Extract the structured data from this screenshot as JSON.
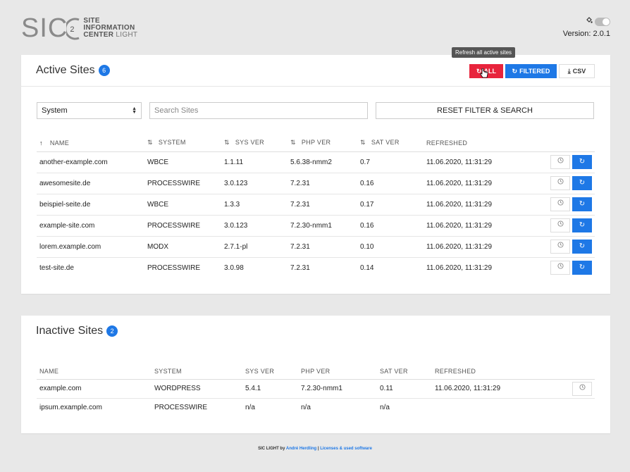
{
  "header": {
    "logo_sic": "SIC",
    "logo_sup": "2",
    "logo_line1": "SITE",
    "logo_line2": "INFORMATION",
    "logo_line3a": "CENTER",
    "logo_line3b": "LIGHT",
    "version": "Version: 2.0.1"
  },
  "tooltip": "Refresh all active sites",
  "active": {
    "title": "Active Sites",
    "count": "6",
    "buttons": {
      "all": "ALL",
      "filtered": "FILTERED",
      "csv": "CSV"
    },
    "select_value": "System",
    "search_placeholder": "Search Sites",
    "reset_label": "RESET FILTER & SEARCH",
    "columns": [
      "NAME",
      "SYSTEM",
      "SYS VER",
      "PHP VER",
      "SAT VER",
      "REFRESHED"
    ],
    "rows": [
      [
        "another-example.com",
        "WBCE",
        "1.1.11",
        "5.6.38-nmm2",
        "0.7",
        "11.06.2020, 11:31:29"
      ],
      [
        "awesomesite.de",
        "PROCESSWIRE",
        "3.0.123",
        "7.2.31",
        "0.16",
        "11.06.2020, 11:31:29"
      ],
      [
        "beispiel-seite.de",
        "WBCE",
        "1.3.3",
        "7.2.31",
        "0.17",
        "11.06.2020, 11:31:29"
      ],
      [
        "example-site.com",
        "PROCESSWIRE",
        "3.0.123",
        "7.2.30-nmm1",
        "0.16",
        "11.06.2020, 11:31:29"
      ],
      [
        "lorem.example.com",
        "MODX",
        "2.7.1-pl",
        "7.2.31",
        "0.10",
        "11.06.2020, 11:31:29"
      ],
      [
        "test-site.de",
        "PROCESSWIRE",
        "3.0.98",
        "7.2.31",
        "0.14",
        "11.06.2020, 11:31:29"
      ]
    ]
  },
  "inactive": {
    "title": "Inactive Sites",
    "count": "2",
    "columns": [
      "NAME",
      "SYSTEM",
      "SYS VER",
      "PHP VER",
      "SAT VER",
      "REFRESHED"
    ],
    "rows": [
      [
        "example.com",
        "WORDPRESS",
        "5.4.1",
        "7.2.30-nmm1",
        "0.11",
        "11.06.2020, 11:31:29"
      ],
      [
        "ipsum.example.com",
        "PROCESSWIRE",
        "n/a",
        "n/a",
        "n/a",
        ""
      ]
    ]
  },
  "footer": {
    "prefix": "SIC LIGHT by ",
    "author": "André Herdling",
    "sep": " | ",
    "licenses": "Licenses & used software"
  },
  "colors": {
    "accent": "#1e78e6",
    "danger": "#e8243c"
  }
}
